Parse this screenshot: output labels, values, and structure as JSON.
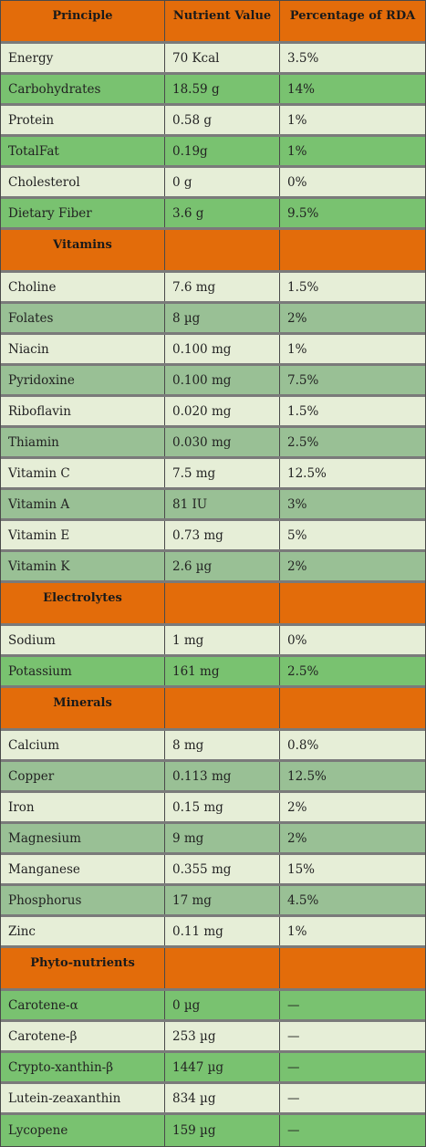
{
  "header": {
    "col1": "Principle",
    "col2": "Nutrient Value",
    "col3": "Percentage of RDA"
  },
  "sections": [
    {
      "title": "",
      "style": "alt-a",
      "rows": [
        {
          "name": "Energy",
          "value": "70 Kcal",
          "rda": "3.5%"
        },
        {
          "name": "Carbohydrates",
          "value": "18.59 g",
          "rda": "14%"
        },
        {
          "name": "Protein",
          "value": "0.58 g",
          "rda": "1%"
        },
        {
          "name": "TotalFat",
          "value": "0.19g",
          "rda": "1%"
        },
        {
          "name": "Cholesterol",
          "value": "0 g",
          "rda": "0%"
        },
        {
          "name": "Dietary Fiber",
          "value": "3.6 g",
          "rda": "9.5%"
        }
      ]
    },
    {
      "title": "Vitamins",
      "style": "alt-b",
      "rows": [
        {
          "name": "Choline",
          "value": "7.6 mg",
          "rda": "1.5%"
        },
        {
          "name": "Folates",
          "value": "8 µg",
          "rda": "2%"
        },
        {
          "name": "Niacin",
          "value": "0.100 mg",
          "rda": "1%"
        },
        {
          "name": "Pyridoxine",
          "value": "0.100 mg",
          "rda": "7.5%"
        },
        {
          "name": "Riboflavin",
          "value": "0.020 mg",
          "rda": "1.5%"
        },
        {
          "name": "Thiamin",
          "value": "0.030 mg",
          "rda": "2.5%"
        },
        {
          "name": "Vitamin C",
          "value": "7.5 mg",
          "rda": "12.5%"
        },
        {
          "name": "Vitamin A",
          "value": "81 IU",
          "rda": "3%"
        },
        {
          "name": "Vitamin E",
          "value": "0.73 mg",
          "rda": "5%"
        },
        {
          "name": "Vitamin K",
          "value": "2.6 µg",
          "rda": "2%"
        }
      ]
    },
    {
      "title": "Electrolytes",
      "style": "alt-a",
      "rows": [
        {
          "name": "Sodium",
          "value": "1 mg",
          "rda": "0%"
        },
        {
          "name": "Potassium",
          "value": "161 mg",
          "rda": "2.5%"
        }
      ]
    },
    {
      "title": "Minerals",
      "style": "alt-b",
      "rows": [
        {
          "name": "Calcium",
          "value": "8 mg",
          "rda": "0.8%"
        },
        {
          "name": "Copper",
          "value": "0.113 mg",
          "rda": "12.5%"
        },
        {
          "name": "Iron",
          "value": "0.15 mg",
          "rda": "2%"
        },
        {
          "name": "Magnesium",
          "value": "9 mg",
          "rda": "2%"
        },
        {
          "name": "Manganese",
          "value": "0.355 mg",
          "rda": "15%"
        },
        {
          "name": "Phosphorus",
          "value": "17 mg",
          "rda": "4.5%"
        },
        {
          "name": "Zinc",
          "value": "0.11 mg",
          "rda": "1%"
        }
      ]
    },
    {
      "title": "Phyto-nutrients",
      "style": "alt-a-first",
      "rows": [
        {
          "name": "Carotene-α",
          "value": "0 µg",
          "rda": "—"
        },
        {
          "name": "Carotene-β",
          "value": "253 µg",
          "rda": "—"
        },
        {
          "name": "Crypto-xanthin-β",
          "value": "1447 µg",
          "rda": "—"
        },
        {
          "name": "Lutein-zeaxanthin",
          "value": "834 µg",
          "rda": "—"
        },
        {
          "name": "Lycopene",
          "value": "159 µg",
          "rda": "—"
        }
      ]
    }
  ]
}
